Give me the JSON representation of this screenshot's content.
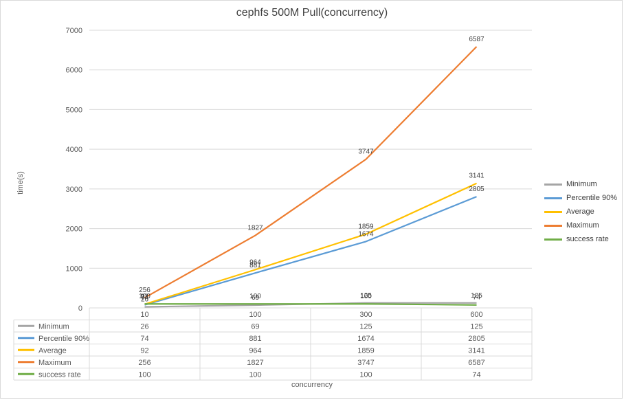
{
  "chart_data": {
    "type": "line",
    "title": "cephfs 500M Pull(concurrency)",
    "xlabel": "concurrency",
    "ylabel": "time(s)",
    "categories": [
      "10",
      "100",
      "300",
      "600"
    ],
    "ylim": [
      0,
      7000
    ],
    "yticks": [
      0,
      1000,
      2000,
      3000,
      4000,
      5000,
      6000,
      7000
    ],
    "grid": true,
    "legend": "right",
    "data_table": true,
    "series": [
      {
        "name": "Minimum",
        "values": [
          26,
          69,
          125,
          125
        ],
        "color": "#a5a5a5"
      },
      {
        "name": "Percentile 90%",
        "values": [
          74,
          881,
          1674,
          2805
        ],
        "color": "#5b9bd5"
      },
      {
        "name": "Average",
        "values": [
          92,
          964,
          1859,
          3141
        ],
        "color": "#ffc000"
      },
      {
        "name": "Maximum",
        "values": [
          256,
          1827,
          3747,
          6587
        ],
        "color": "#ed7d31"
      },
      {
        "name": "success rate",
        "values": [
          100,
          100,
          100,
          74
        ],
        "color": "#70ad47"
      }
    ]
  }
}
